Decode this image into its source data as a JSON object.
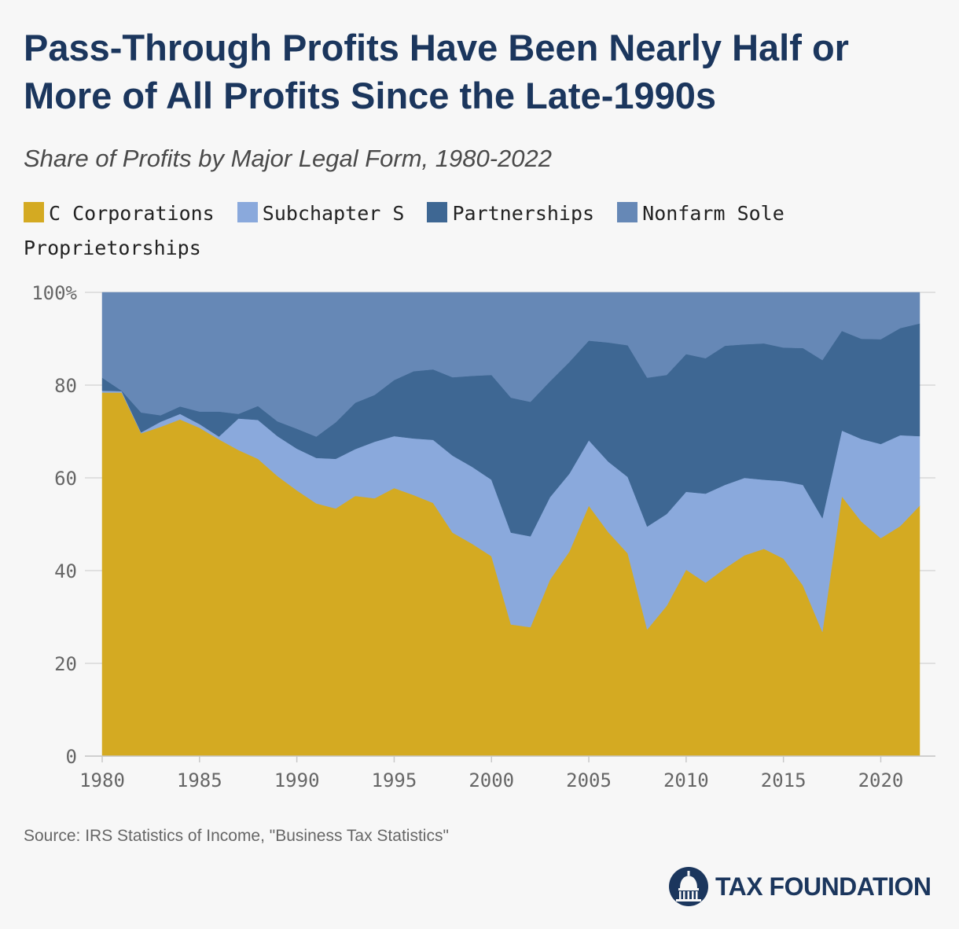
{
  "title": "Pass-Through Profits Have Been Nearly Half or More of All Profits Since the Late-1990s",
  "subtitle": "Share of Profits by Major Legal Form, 1980-2022",
  "source": "Source: IRS Statistics of Income, \"Business Tax Statistics\"",
  "brand": {
    "name": "TAX FOUNDATION",
    "logo_icon": "capitol-dome-icon"
  },
  "colors": {
    "background": "#f7f7f7",
    "c_corporations": "#d4aa22",
    "subchapter_s": "#8aa9dc",
    "partnerships": "#3e6793",
    "nonfarm_sole_proprietorships": "#6688b6",
    "title": "#1b365d"
  },
  "legend": [
    {
      "label": "C Corporations",
      "color": "#d4aa22"
    },
    {
      "label": "Subchapter S",
      "color": "#8aa9dc"
    },
    {
      "label": "Partnerships",
      "color": "#3e6793"
    },
    {
      "label": "Nonfarm Sole Proprietorships",
      "color": "#6688b6"
    }
  ],
  "chart_data": {
    "type": "area",
    "stacked": true,
    "title": "Share of Profits by Major Legal Form, 1980-2022",
    "xlabel": "",
    "ylabel": "",
    "x": [
      1980,
      1981,
      1982,
      1983,
      1984,
      1985,
      1986,
      1987,
      1988,
      1989,
      1990,
      1991,
      1992,
      1993,
      1994,
      1995,
      1996,
      1997,
      1998,
      1999,
      2000,
      2001,
      2002,
      2003,
      2004,
      2005,
      2006,
      2007,
      2008,
      2009,
      2010,
      2011,
      2012,
      2013,
      2014,
      2015,
      2016,
      2017,
      2018,
      2019,
      2020,
      2021,
      2022
    ],
    "xlim": [
      1980,
      2022
    ],
    "ylim": [
      0,
      100
    ],
    "x_ticks": [
      1980,
      1985,
      1990,
      1995,
      2000,
      2005,
      2010,
      2015,
      2020
    ],
    "y_ticks": [
      0,
      20,
      40,
      60,
      80,
      100
    ],
    "y_tick_labels": [
      "0",
      "20",
      "40",
      "60",
      "80",
      "100%"
    ],
    "grid": true,
    "series": [
      {
        "name": "C Corporations",
        "color": "#d4aa22",
        "values": [
          78.4,
          78.4,
          69.6,
          71.0,
          72.6,
          70.8,
          68.3,
          66.0,
          64.1,
          60.4,
          57.3,
          54.5,
          53.4,
          56.1,
          55.6,
          57.8,
          56.3,
          54.6,
          48.2,
          45.8,
          43.1,
          28.4,
          27.8,
          38.0,
          44.1,
          54.0,
          48.3,
          43.7,
          27.3,
          32.4,
          40.2,
          37.4,
          40.5,
          43.3,
          44.7,
          42.6,
          36.8,
          26.8,
          56.0,
          50.6,
          47.0,
          49.6,
          54.0
        ]
      },
      {
        "name": "Subchapter S",
        "color": "#8aa9dc",
        "values": [
          0.4,
          0.3,
          0.2,
          1.1,
          1.2,
          0.8,
          0.6,
          6.8,
          8.4,
          8.6,
          9.0,
          9.8,
          10.7,
          10.1,
          12.2,
          11.2,
          12.2,
          13.6,
          16.6,
          16.6,
          16.5,
          19.8,
          19.6,
          17.8,
          16.8,
          14.1,
          15.2,
          16.5,
          22.2,
          19.8,
          16.8,
          19.2,
          18.0,
          16.7,
          14.9,
          16.7,
          21.7,
          24.5,
          14.2,
          17.8,
          20.3,
          19.6,
          15.0
        ]
      },
      {
        "name": "Partnerships",
        "color": "#3e6793",
        "values": [
          2.8,
          0.1,
          4.3,
          1.4,
          1.6,
          2.7,
          5.4,
          1.0,
          3.0,
          3.2,
          4.3,
          4.6,
          7.9,
          10.0,
          10.1,
          12.1,
          14.5,
          15.2,
          16.9,
          19.6,
          22.6,
          29.1,
          29.0,
          25.0,
          24.1,
          21.5,
          25.7,
          28.4,
          32.1,
          30.0,
          29.7,
          29.2,
          30.0,
          28.8,
          29.4,
          28.8,
          29.5,
          34.1,
          21.5,
          21.6,
          22.6,
          23.1,
          24.3
        ]
      },
      {
        "name": "Nonfarm Sole Proprietorships",
        "color": "#6688b6",
        "values": [
          18.4,
          21.2,
          25.9,
          26.5,
          24.6,
          25.7,
          25.7,
          26.2,
          24.5,
          27.8,
          29.4,
          31.1,
          28.0,
          23.8,
          22.1,
          18.9,
          17.0,
          16.6,
          18.3,
          18.0,
          17.8,
          22.7,
          23.6,
          19.2,
          15.0,
          10.4,
          10.8,
          11.4,
          18.4,
          17.8,
          13.3,
          14.2,
          11.5,
          11.2,
          11.0,
          11.9,
          12.0,
          14.6,
          8.3,
          10.0,
          10.1,
          7.7,
          6.7
        ]
      }
    ]
  }
}
